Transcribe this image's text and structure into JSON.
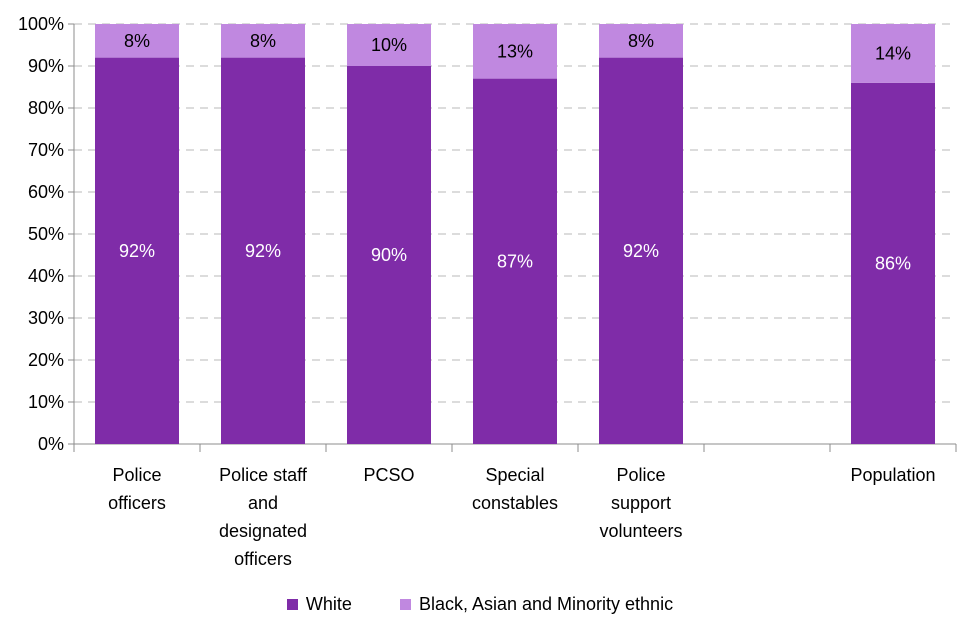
{
  "chart_data": {
    "type": "bar",
    "stacked": true,
    "title": "",
    "xlabel": "",
    "ylabel": "",
    "ylim": [
      0,
      100
    ],
    "y_ticks": [
      "0%",
      "10%",
      "20%",
      "30%",
      "40%",
      "50%",
      "60%",
      "70%",
      "80%",
      "90%",
      "100%"
    ],
    "categories": [
      [
        "Police",
        "officers"
      ],
      [
        "Police staff",
        "and",
        "designated",
        "officers"
      ],
      [
        "PCSO"
      ],
      [
        "Special",
        "constables"
      ],
      [
        "Police",
        "support",
        "volunteers"
      ],
      [],
      [
        "Population"
      ]
    ],
    "series": [
      {
        "name": "White",
        "color": "#7f2ca8",
        "label_color": "#ffffff",
        "values": [
          92,
          92,
          90,
          87,
          92,
          null,
          86
        ],
        "labels": [
          "92%",
          "92%",
          "90%",
          "87%",
          "92%",
          "",
          "86%"
        ]
      },
      {
        "name": "Black, Asian and Minority ethnic",
        "color": "#c088e0",
        "label_color": "#000000",
        "values": [
          8,
          8,
          10,
          13,
          8,
          null,
          14
        ],
        "labels": [
          "8%",
          "8%",
          "10%",
          "13%",
          "8%",
          "",
          "14%"
        ]
      }
    ],
    "grid": true,
    "legend_position": "bottom"
  }
}
